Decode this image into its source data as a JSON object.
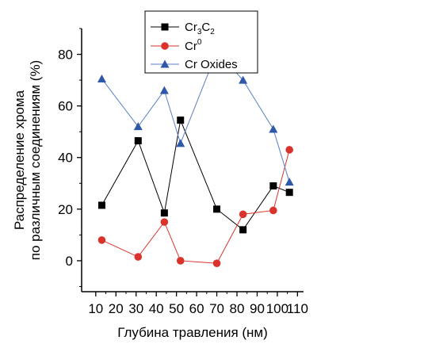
{
  "chart_data": {
    "type": "line",
    "xlabel": "Глубина травления (нм)",
    "ylabel_line1": "Распределение хрома",
    "ylabel_line2": "по различным соединениям (%)",
    "x_ticks": [
      10,
      20,
      30,
      40,
      50,
      60,
      70,
      80,
      90,
      100,
      110
    ],
    "y_ticks": [
      0,
      20,
      40,
      60,
      80
    ],
    "xlim": [
      3,
      113
    ],
    "ylim": [
      -12,
      90
    ],
    "grid": false,
    "legend_position": "top-left",
    "series": [
      {
        "name": "Cr3C2",
        "legend_base": "Cr",
        "legend_sub1": "3",
        "legend_mid": "C",
        "legend_sub2": "2",
        "color": "#000000",
        "marker": "square",
        "x": [
          13,
          31,
          44,
          52,
          70,
          83,
          98,
          106
        ],
        "values": [
          21.5,
          46.5,
          18.5,
          54.5,
          20,
          12,
          29,
          26.5
        ]
      },
      {
        "name": "Cr0",
        "legend_base": "Cr",
        "legend_sup": "0",
        "color": "#d9332b",
        "marker": "circle",
        "x": [
          13,
          31,
          44,
          52,
          70,
          83,
          98,
          106
        ],
        "values": [
          8,
          1.5,
          15,
          0,
          -1,
          18,
          19.5,
          43
        ]
      },
      {
        "name": "Cr Oxides",
        "legend_label": "Cr Oxides",
        "color": "#2e58a8",
        "line_color": "#5b7fc4",
        "marker": "triangle",
        "x": [
          13,
          31,
          44,
          52,
          70,
          83,
          98,
          106
        ],
        "values": [
          70.5,
          52,
          66,
          45.5,
          81,
          70,
          51,
          30.5
        ]
      }
    ]
  }
}
